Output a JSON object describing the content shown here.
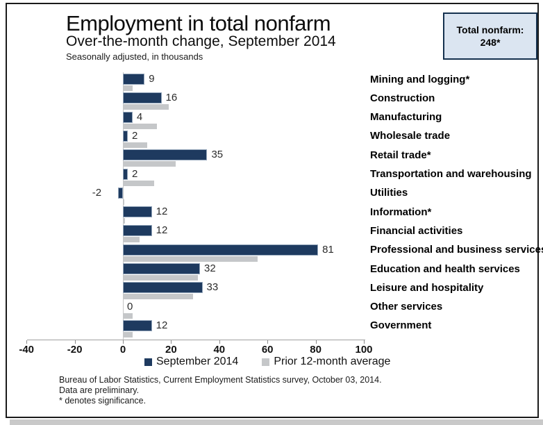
{
  "header": {
    "title": "Employment in total nonfarm",
    "subtitle": "Over-the-month change, September 2014",
    "note": "Seasonally adjusted, in thousands",
    "total_box": {
      "label": "Total nonfarm:",
      "value": "248*"
    }
  },
  "chart_data": {
    "type": "bar",
    "orientation": "horizontal",
    "title": "Employment in total nonfarm",
    "subtitle": "Over-the-month change, September 2014",
    "units": "thousands, seasonally adjusted",
    "xlim": [
      -40,
      100
    ],
    "xticks": [
      -40,
      -20,
      0,
      20,
      40,
      60,
      80,
      100
    ],
    "grid": false,
    "legend_position": "bottom",
    "categories": [
      "Mining and logging*",
      "Construction",
      "Manufacturing",
      "Wholesale trade",
      "Retail trade*",
      "Transportation and warehousing",
      "Utilities",
      "Information*",
      "Financial activities",
      "Professional and business services*",
      "Education and health services",
      "Leisure and hospitality",
      "Other services",
      "Government"
    ],
    "series": [
      {
        "name": "September 2014",
        "color": "#1e3a5f",
        "values": [
          9,
          16,
          4,
          2,
          35,
          2,
          -2,
          12,
          12,
          81,
          32,
          33,
          0,
          12
        ],
        "labels": [
          "9",
          "16",
          "4",
          "2",
          "35",
          "2",
          "-2",
          "12",
          "12",
          "81",
          "32",
          "33",
          "0",
          "12"
        ]
      },
      {
        "name": "Prior 12-month average",
        "color": "#c5c7c9",
        "values": [
          4,
          19,
          14,
          10,
          22,
          13,
          0.5,
          1,
          7,
          56,
          31,
          29,
          4,
          4
        ],
        "labels": []
      }
    ]
  },
  "footer": {
    "line1": "Bureau of Labor Statistics, Current Employment Statistics survey, October 03, 2014.",
    "line2": "Data are preliminary.",
    "line3": "* denotes significance."
  }
}
